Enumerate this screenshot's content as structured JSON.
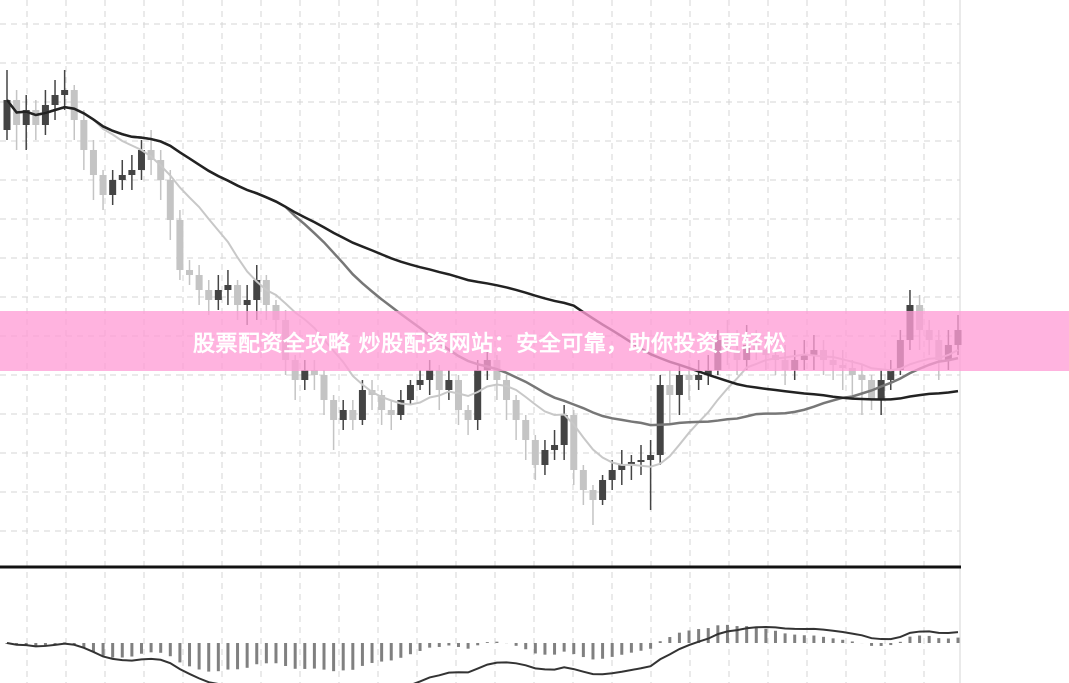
{
  "banner": {
    "title": "股票配资全攻略 炒股配资网站：安全可靠，助你投资更轻松",
    "color": "#ff9ed6"
  },
  "chart_data": {
    "type": "candlestick",
    "title": "",
    "xlabel": "",
    "ylabel": "",
    "ylim": [
      4,
      60
    ],
    "grid": true,
    "colors": {
      "up": "#444444",
      "down": "#c4c4c4",
      "ma_short": "#c8c8c8",
      "ma_mid": "#777777",
      "ma_long": "#222222",
      "macd": "#808080"
    },
    "moving_averages": [
      10,
      30,
      60
    ],
    "indicator": "MACD",
    "candles_ohlc": [
      [
        47,
        53,
        46,
        50
      ],
      [
        50,
        51,
        45,
        47.5
      ],
      [
        47.5,
        50.5,
        45,
        49
      ],
      [
        49,
        50,
        46,
        47.5
      ],
      [
        47.5,
        51,
        46.5,
        49.5
      ],
      [
        49.5,
        52,
        48,
        50.5
      ],
      [
        50.5,
        53,
        49,
        51
      ],
      [
        51,
        51.5,
        46,
        48
      ],
      [
        48,
        49,
        43,
        45
      ],
      [
        45,
        46,
        40,
        42.5
      ],
      [
        42.5,
        43,
        39,
        40.5
      ],
      [
        40.5,
        43,
        39.5,
        42
      ],
      [
        42,
        44,
        41,
        42.5
      ],
      [
        42.5,
        44.5,
        41,
        43
      ],
      [
        43,
        46,
        42,
        45
      ],
      [
        45,
        47,
        42.5,
        44
      ],
      [
        44,
        45,
        40,
        42
      ],
      [
        42,
        43,
        36,
        38
      ],
      [
        38,
        39,
        32,
        33
      ],
      [
        33,
        34,
        31.5,
        32.5
      ],
      [
        32.5,
        33.5,
        29.5,
        31
      ],
      [
        31,
        32,
        28.5,
        30
      ],
      [
        30,
        32.5,
        29,
        31
      ],
      [
        31,
        33,
        29.5,
        31.5
      ],
      [
        31.5,
        32,
        28,
        29.5
      ],
      [
        29.5,
        31.5,
        27.5,
        30
      ],
      [
        30,
        33.5,
        28,
        32
      ],
      [
        32,
        32.5,
        28,
        29.5
      ],
      [
        29.5,
        30,
        26,
        28
      ],
      [
        28,
        29,
        22.5,
        24
      ],
      [
        24,
        24.5,
        20,
        22
      ],
      [
        22,
        24,
        21,
        23
      ],
      [
        23,
        24,
        21,
        22.5
      ],
      [
        22.5,
        23,
        18.5,
        20
      ],
      [
        20,
        20.5,
        15,
        18
      ],
      [
        18,
        20,
        17,
        19
      ],
      [
        19,
        20,
        17,
        18
      ],
      [
        18,
        22,
        17.5,
        21
      ],
      [
        21,
        22,
        19,
        20.5
      ],
      [
        20.5,
        21,
        17.5,
        19
      ],
      [
        19,
        20,
        17,
        18.5
      ],
      [
        18.5,
        21,
        18,
        20
      ],
      [
        20,
        22,
        19.5,
        21.5
      ],
      [
        21.5,
        23,
        21,
        22
      ],
      [
        22,
        24,
        20.5,
        23
      ],
      [
        23,
        23.5,
        19,
        21
      ],
      [
        21,
        23,
        20,
        22
      ],
      [
        22,
        22.5,
        17.5,
        19
      ],
      [
        19,
        19.5,
        16.5,
        18
      ],
      [
        18,
        24,
        17,
        23
      ],
      [
        23,
        25,
        22,
        24
      ],
      [
        24,
        24.5,
        20,
        22
      ],
      [
        22,
        22.5,
        18,
        20
      ],
      [
        20,
        20.5,
        16,
        18
      ],
      [
        18,
        18.5,
        14,
        16
      ],
      [
        16,
        16.5,
        12,
        13.5
      ],
      [
        13.5,
        16,
        12.5,
        15
      ],
      [
        15,
        17,
        14,
        15.5
      ],
      [
        15.5,
        19.5,
        14,
        18.5
      ],
      [
        18.5,
        19,
        11.5,
        13
      ],
      [
        13,
        13.5,
        9.5,
        11
      ],
      [
        11,
        11.5,
        7.5,
        10
      ],
      [
        10,
        12.5,
        9.5,
        12
      ],
      [
        12,
        14,
        11,
        13
      ],
      [
        13,
        15,
        11.5,
        13.5
      ],
      [
        13.5,
        14.5,
        12,
        13.8
      ],
      [
        13.8,
        15.5,
        12.5,
        14
      ],
      [
        14,
        16,
        9,
        14.5
      ],
      [
        14.5,
        22.5,
        13.5,
        21.5
      ],
      [
        21.5,
        23,
        17.5,
        20.5
      ],
      [
        20.5,
        23.5,
        18.5,
        22.5
      ],
      [
        22.5,
        24,
        20,
        22
      ],
      [
        22,
        24,
        21,
        22.5
      ],
      [
        22.5,
        24.5,
        21.5,
        23
      ],
      [
        23,
        27,
        22.5,
        26
      ],
      [
        26,
        28,
        23.5,
        25
      ],
      [
        25,
        27,
        22.5,
        24
      ],
      [
        24,
        27.5,
        23,
        25.5
      ],
      [
        25.5,
        27,
        24,
        25
      ],
      [
        25,
        26,
        23,
        24.5
      ],
      [
        24.5,
        26,
        22.5,
        24
      ],
      [
        24,
        25.5,
        21.5,
        23
      ],
      [
        23,
        25,
        22,
        24
      ],
      [
        24,
        26,
        23,
        24.5
      ],
      [
        24.5,
        26.5,
        23,
        25
      ],
      [
        25,
        26,
        22.5,
        24
      ],
      [
        24,
        25,
        22,
        23.5
      ],
      [
        23.5,
        25,
        21,
        23.2
      ],
      [
        23.2,
        24,
        20.5,
        22.5
      ],
      [
        22.5,
        23.5,
        18.5,
        22
      ],
      [
        22,
        22.5,
        19,
        20
      ],
      [
        20,
        23,
        18.5,
        22
      ],
      [
        22,
        24,
        21,
        23
      ],
      [
        23,
        27,
        22.5,
        26
      ],
      [
        26,
        31,
        25,
        29.5
      ],
      [
        29.5,
        30.5,
        25,
        27
      ],
      [
        27,
        28,
        24.5,
        26
      ],
      [
        26,
        27,
        22,
        24
      ],
      [
        24,
        27,
        23,
        25.5
      ],
      [
        25.5,
        28.5,
        24.5,
        27
      ]
    ]
  }
}
